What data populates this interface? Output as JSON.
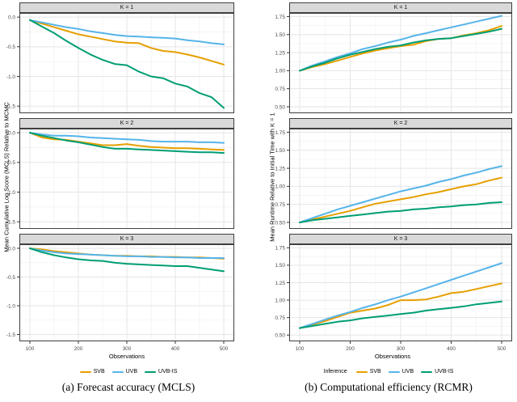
{
  "colors": {
    "SVB": "#E69F00",
    "UVB": "#56B4E9",
    "UVB-IS": "#009E73",
    "strip_background": "#d9d9d9",
    "panel_border": "#3f3f3f",
    "grid_major": "#e5e5e5",
    "grid_minor": "#f2f2f2",
    "tick_text": "#4d4d4d"
  },
  "chart_data": [
    {
      "type": "line",
      "title": "(a) Forecast accuracy (MCLS)",
      "xlabel": "Observations",
      "ylabel": "Mean Cumulative Log Score (MCLS) Relative to MCMC",
      "legend_title": null,
      "legend_position": "bottom",
      "grid": true,
      "x": [
        100,
        125,
        150,
        175,
        200,
        225,
        250,
        275,
        300,
        325,
        350,
        375,
        400,
        425,
        450,
        475,
        500
      ],
      "xlim": [
        100,
        500
      ],
      "x_ticks": [
        100,
        200,
        300,
        400,
        500
      ],
      "x_minor_ticks": [
        150,
        250,
        350,
        450
      ],
      "ylim": [
        -1.62,
        0.07
      ],
      "y_ticks": [
        0.0,
        -0.5,
        -1.0,
        -1.5
      ],
      "y_tick_labels": [
        "0.0",
        "-0.5",
        "-1.0",
        "-1.5"
      ],
      "y_minor_ticks": [
        -0.25,
        -0.75,
        -1.25
      ],
      "facets": [
        {
          "label": "K = 1",
          "series": [
            {
              "name": "SVB",
              "values": [
                -0.05,
                -0.11,
                -0.17,
                -0.23,
                -0.29,
                -0.33,
                -0.37,
                -0.41,
                -0.43,
                -0.44,
                -0.52,
                -0.57,
                -0.59,
                -0.63,
                -0.68,
                -0.74,
                -0.8
              ]
            },
            {
              "name": "UVB",
              "values": [
                -0.05,
                -0.09,
                -0.13,
                -0.17,
                -0.2,
                -0.24,
                -0.27,
                -0.3,
                -0.32,
                -0.33,
                -0.34,
                -0.35,
                -0.36,
                -0.39,
                -0.41,
                -0.44,
                -0.46
              ]
            },
            {
              "name": "UVB-IS",
              "values": [
                -0.05,
                -0.16,
                -0.27,
                -0.4,
                -0.52,
                -0.63,
                -0.72,
                -0.79,
                -0.81,
                -0.92,
                -1.0,
                -1.03,
                -1.12,
                -1.17,
                -1.28,
                -1.35,
                -1.53
              ]
            }
          ]
        },
        {
          "label": "K = 2",
          "series": [
            {
              "name": "SVB",
              "values": [
                0,
                -0.08,
                -0.11,
                -0.12,
                -0.15,
                -0.18,
                -0.21,
                -0.21,
                -0.19,
                -0.22,
                -0.24,
                -0.25,
                -0.26,
                -0.26,
                -0.27,
                -0.28,
                -0.29
              ]
            },
            {
              "name": "UVB",
              "values": [
                0,
                -0.03,
                -0.05,
                -0.05,
                -0.06,
                -0.08,
                -0.09,
                -0.1,
                -0.11,
                -0.12,
                -0.14,
                -0.15,
                -0.15,
                -0.15,
                -0.16,
                -0.16,
                -0.17
              ]
            },
            {
              "name": "UVB-IS",
              "values": [
                0,
                -0.05,
                -0.09,
                -0.13,
                -0.16,
                -0.2,
                -0.24,
                -0.27,
                -0.27,
                -0.28,
                -0.29,
                -0.3,
                -0.31,
                -0.32,
                -0.33,
                -0.33,
                -0.34
              ]
            }
          ]
        },
        {
          "label": "K = 3",
          "series": [
            {
              "name": "SVB",
              "values": [
                0,
                -0.02,
                -0.05,
                -0.07,
                -0.09,
                -0.11,
                -0.12,
                -0.13,
                -0.13,
                -0.14,
                -0.14,
                -0.15,
                -0.15,
                -0.16,
                -0.16,
                -0.17,
                -0.18
              ]
            },
            {
              "name": "UVB",
              "values": [
                0,
                -0.04,
                -0.07,
                -0.09,
                -0.1,
                -0.11,
                -0.12,
                -0.13,
                -0.14,
                -0.14,
                -0.15,
                -0.15,
                -0.16,
                -0.16,
                -0.17,
                -0.17,
                -0.17
              ]
            },
            {
              "name": "UVB-IS",
              "values": [
                0,
                -0.07,
                -0.12,
                -0.16,
                -0.19,
                -0.21,
                -0.22,
                -0.25,
                -0.27,
                -0.28,
                -0.29,
                -0.3,
                -0.31,
                -0.31,
                -0.34,
                -0.37,
                -0.4
              ]
            }
          ]
        }
      ]
    },
    {
      "type": "line",
      "title": "(b) Computational efficiency (RCMR)",
      "xlabel": "Observations",
      "ylabel": "Mean Runtime Relative to Initial Time with K = 1",
      "legend_title": "Inference",
      "legend_position": "bottom",
      "grid": true,
      "x": [
        100,
        125,
        150,
        175,
        200,
        225,
        250,
        275,
        300,
        325,
        350,
        375,
        400,
        425,
        450,
        475,
        500
      ],
      "xlim": [
        100,
        500
      ],
      "x_ticks": [
        100,
        200,
        300,
        400,
        500
      ],
      "x_minor_ticks": [
        150,
        250,
        350,
        450
      ],
      "ylim": [
        0.41,
        1.8
      ],
      "y_ticks": [
        1.75,
        1.5,
        1.25,
        1.0,
        0.75,
        0.5
      ],
      "y_tick_labels": [
        "1.75",
        "1.50",
        "1.25",
        "1.00",
        "0.75",
        "0.50"
      ],
      "y_minor_ticks": [
        1.625,
        1.375,
        1.125,
        0.875,
        0.625
      ],
      "facets": [
        {
          "label": "K = 1",
          "series": [
            {
              "name": "SVB",
              "values": [
                1.0,
                1.05,
                1.09,
                1.14,
                1.19,
                1.24,
                1.28,
                1.31,
                1.34,
                1.36,
                1.41,
                1.44,
                1.45,
                1.49,
                1.52,
                1.56,
                1.62
              ]
            },
            {
              "name": "UVB",
              "values": [
                1.0,
                1.07,
                1.13,
                1.19,
                1.24,
                1.3,
                1.34,
                1.39,
                1.43,
                1.48,
                1.52,
                1.56,
                1.6,
                1.64,
                1.68,
                1.72,
                1.76
              ]
            },
            {
              "name": "UVB-IS",
              "values": [
                1.0,
                1.06,
                1.11,
                1.17,
                1.22,
                1.26,
                1.3,
                1.33,
                1.35,
                1.39,
                1.42,
                1.44,
                1.45,
                1.48,
                1.51,
                1.54,
                1.58
              ]
            }
          ]
        },
        {
          "label": "K = 2",
          "series": [
            {
              "name": "SVB",
              "values": [
                0.5,
                0.54,
                0.58,
                0.62,
                0.66,
                0.71,
                0.76,
                0.79,
                0.82,
                0.85,
                0.89,
                0.92,
                0.96,
                1.0,
                1.03,
                1.08,
                1.12
              ]
            },
            {
              "name": "UVB",
              "values": [
                0.5,
                0.56,
                0.62,
                0.68,
                0.73,
                0.78,
                0.83,
                0.88,
                0.93,
                0.97,
                1.01,
                1.06,
                1.1,
                1.15,
                1.19,
                1.24,
                1.28
              ]
            },
            {
              "name": "UVB-IS",
              "values": [
                0.5,
                0.53,
                0.55,
                0.57,
                0.59,
                0.61,
                0.63,
                0.65,
                0.66,
                0.68,
                0.69,
                0.71,
                0.72,
                0.74,
                0.75,
                0.77,
                0.78
              ]
            }
          ]
        },
        {
          "label": "K = 3",
          "series": [
            {
              "name": "SVB",
              "values": [
                0.6,
                0.65,
                0.7,
                0.76,
                0.82,
                0.85,
                0.88,
                0.93,
                1.0,
                1.0,
                1.01,
                1.05,
                1.1,
                1.12,
                1.16,
                1.2,
                1.24
              ]
            },
            {
              "name": "UVB",
              "values": [
                0.6,
                0.66,
                0.72,
                0.78,
                0.83,
                0.89,
                0.94,
                1.0,
                1.05,
                1.11,
                1.17,
                1.23,
                1.29,
                1.35,
                1.41,
                1.47,
                1.53
              ]
            },
            {
              "name": "UVB-IS",
              "values": [
                0.6,
                0.63,
                0.66,
                0.69,
                0.71,
                0.74,
                0.76,
                0.78,
                0.8,
                0.82,
                0.85,
                0.87,
                0.89,
                0.91,
                0.94,
                0.96,
                0.98
              ]
            }
          ]
        }
      ]
    }
  ]
}
